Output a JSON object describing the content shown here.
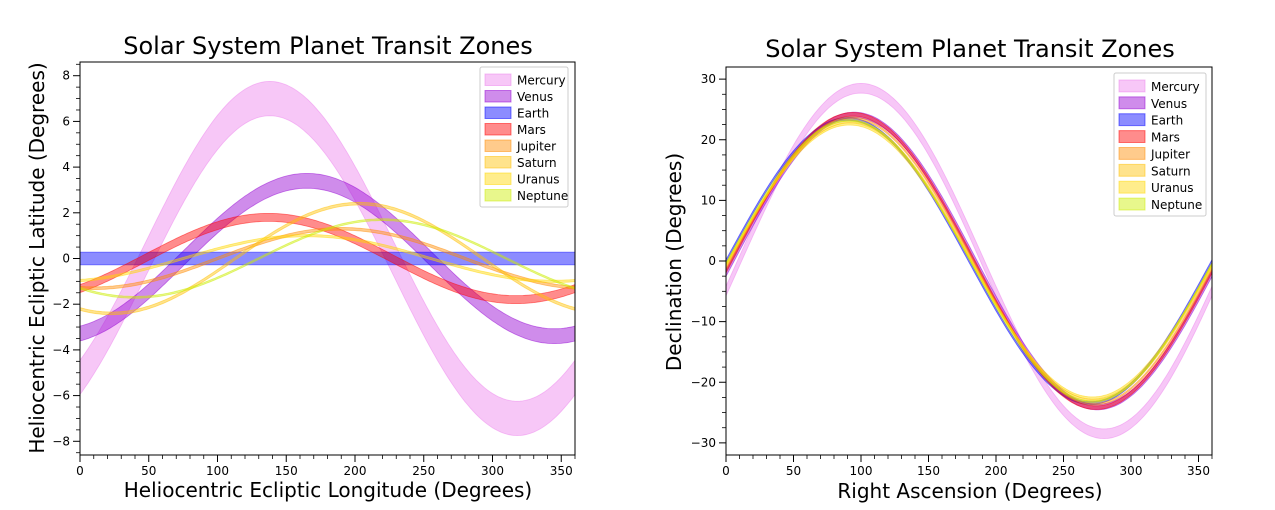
{
  "chart_data": [
    {
      "type": "area",
      "title": "Solar System Planet Transit Zones",
      "xlabel": "Heliocentric Ecliptic Longitude (Degrees)",
      "ylabel": "Heliocentric Ecliptic Latitude (Degrees)",
      "xlim": [
        0,
        360
      ],
      "ylim": [
        -8.6,
        8.6
      ],
      "x_ticks": [
        0,
        50,
        100,
        150,
        200,
        250,
        300,
        350
      ],
      "y_ticks": [
        -8,
        -6,
        -4,
        -2,
        0,
        2,
        4,
        6,
        8
      ],
      "x_tick_labels": [
        "0",
        "50",
        "100",
        "150",
        "200",
        "250",
        "300",
        "350"
      ],
      "y_tick_labels": [
        "−8",
        "−6",
        "−4",
        "−2",
        "0",
        "2",
        "4",
        "6",
        "8"
      ],
      "grid": false,
      "legend_position": "top-right",
      "model": "bands of the form center(x) = amplitude * sin((x - phase) in degrees) with constant band width",
      "series": [
        {
          "name": "Mercury",
          "color": "#ee82ee",
          "amplitude": 7.0,
          "phase": 48,
          "width": 1.5
        },
        {
          "name": "Venus",
          "color": "#9400d3",
          "amplitude": 3.4,
          "phase": 75,
          "width": 0.65
        },
        {
          "name": "Earth",
          "color": "#0000ff",
          "amplitude": 0.0,
          "phase": 0,
          "width": 0.55
        },
        {
          "name": "Mars",
          "color": "#ff0000",
          "amplitude": 1.8,
          "phase": 47,
          "width": 0.35
        },
        {
          "name": "Jupiter",
          "color": "#ff8c00",
          "amplitude": 1.3,
          "phase": 100,
          "width": 0.12
        },
        {
          "name": "Saturn",
          "color": "#ffc000",
          "amplitude": 2.4,
          "phase": 113,
          "width": 0.12
        },
        {
          "name": "Uranus",
          "color": "#ffd700",
          "amplitude": 1.0,
          "phase": 75,
          "width": 0.1
        },
        {
          "name": "Neptune",
          "color": "#ccee00",
          "amplitude": 1.7,
          "phase": 130,
          "width": 0.08
        }
      ]
    },
    {
      "type": "area",
      "title": "Solar System Planet Transit Zones",
      "xlabel": "Right Ascension (Degrees)",
      "ylabel": "Declination (Degrees)",
      "xlim": [
        0,
        360
      ],
      "ylim": [
        -32,
        32
      ],
      "x_ticks": [
        0,
        50,
        100,
        150,
        200,
        250,
        300,
        350
      ],
      "y_ticks": [
        -30,
        -20,
        -10,
        0,
        10,
        20,
        30
      ],
      "x_tick_labels": [
        "0",
        "50",
        "100",
        "150",
        "200",
        "250",
        "300",
        "350"
      ],
      "y_tick_labels": [
        "−30",
        "−20",
        "−10",
        "0",
        "10",
        "20",
        "30"
      ],
      "grid": false,
      "legend_position": "top-right",
      "model": "bands of the form center(x) = amplitude * sin((x - phase) in degrees) with constant band width",
      "series": [
        {
          "name": "Mercury",
          "color": "#ee82ee",
          "amplitude": 28.5,
          "phase": 10,
          "width": 1.6
        },
        {
          "name": "Venus",
          "color": "#9400d3",
          "amplitude": 24.1,
          "phase": 5,
          "width": 0.9
        },
        {
          "name": "Earth",
          "color": "#0000ff",
          "amplitude": 23.44,
          "phase": 0,
          "width": 0.45
        },
        {
          "name": "Mars",
          "color": "#ff0000",
          "amplitude": 24.2,
          "phase": 4,
          "width": 0.6
        },
        {
          "name": "Jupiter",
          "color": "#ff8c00",
          "amplitude": 23.6,
          "phase": 3,
          "width": 0.3
        },
        {
          "name": "Saturn",
          "color": "#ffc000",
          "amplitude": 23.0,
          "phase": 2,
          "width": 0.35
        },
        {
          "name": "Uranus",
          "color": "#ffd700",
          "amplitude": 22.6,
          "phase": 1.5,
          "width": 0.35
        },
        {
          "name": "Neptune",
          "color": "#ccee00",
          "amplitude": 23.2,
          "phase": 1,
          "width": 0.3
        }
      ]
    }
  ]
}
